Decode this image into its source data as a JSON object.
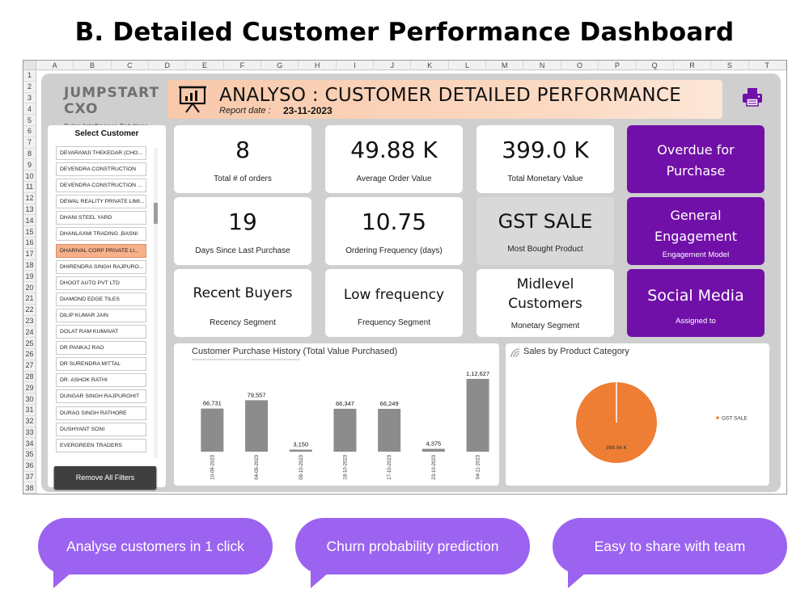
{
  "page_title": "B. Detailed Customer Performance Dashboard",
  "sheet": {
    "columns": [
      "A",
      "B",
      "C",
      "D",
      "E",
      "F",
      "G",
      "H",
      "I",
      "J",
      "K",
      "L",
      "M",
      "N",
      "O",
      "P",
      "Q",
      "R",
      "S",
      "T"
    ],
    "rows": [
      "1",
      "2",
      "3",
      "4",
      "5",
      "6",
      "7",
      "8",
      "9",
      "10",
      "11",
      "12",
      "13",
      "14",
      "15",
      "16",
      "17",
      "18",
      "19",
      "20",
      "21",
      "22",
      "23",
      "24",
      "25",
      "26",
      "27",
      "28",
      "29",
      "30",
      "31",
      "32",
      "33",
      "34",
      "35",
      "36",
      "37",
      "38"
    ]
  },
  "logo": {
    "name": "JUMPSTART CXO",
    "tagline": "Sales Intelligence Solutions."
  },
  "banner": {
    "title": "ANALYSO :  CUSTOMER DETAILED PERFORMANCE",
    "date_label": "Report date :",
    "date": "23-11-2023"
  },
  "slicer": {
    "title": "Select Customer",
    "items": [
      "DEVARAMJI THEKEDAR (CHO...",
      "DEVENDRA CONSTRUCTION",
      "DEVENDRA CONSTRUCTION CO",
      "DEWAL REALITY PRIVATE LIMI...",
      "DHANI STEEL YARD",
      "DHANLAXMI TRADING ,BASNI",
      "DHARIVAL CORP PRIVATE LI...",
      "DHIRENDRA SINGH RAJPURO...",
      "DHOOT AUTO PVT LTD",
      "DIAMOND EDGE TILES",
      "DILIP KUMAR JAIN",
      "DOLAT RAM KUMAVAT",
      "DR PANKAJ RAO",
      "DR SURENDRA MITTAL",
      "DR. ASHOK RATHI",
      "DUNGAR SINGH RAJPUROHIT",
      "DURAG SINGH RATHORE",
      "DUSHYANT SONI",
      "EVERGREEN TRADERS"
    ],
    "selected_index": 6,
    "remove_label": "Remove All Filters"
  },
  "kpis": {
    "orders": {
      "value": "8",
      "label": "Total # of orders"
    },
    "aov": {
      "value": "49.88 K",
      "label": "Average Order Value"
    },
    "monetary": {
      "value": "399.0 K",
      "label": "Total Monetary Value"
    },
    "days_since": {
      "value": "19",
      "label": "Days Since Last Purchase"
    },
    "frequency": {
      "value": "10.75",
      "label": "Ordering Frequency (days)"
    },
    "product": {
      "value": "GST SALE",
      "label": "Most Bought Product"
    },
    "recency_seg": {
      "value": "Recent Buyers",
      "label": "Recency Segment"
    },
    "frequency_seg": {
      "value": "Low frequency",
      "label": "Frequency Segment"
    },
    "monetary_seg": {
      "value_line1": "Midlevel",
      "value_line2": "Customers",
      "label": "Monetary Segment"
    },
    "overdue": {
      "line1": "Overdue for",
      "line2": "Purchase"
    },
    "engagement": {
      "line1": "General",
      "line2": "Engagement",
      "label": "Engagement Model"
    },
    "assigned": {
      "value": "Social Media",
      "label": "Assigned to"
    }
  },
  "chart_data": [
    {
      "type": "bar",
      "title": "Customer Purchase History (Total Value Purchased)",
      "categories": [
        "10-09-2023",
        "04-09-2023",
        "09-10-2023",
        "18-10-2023",
        "17-10-2023",
        "23-10-2023",
        "04-11-2023"
      ],
      "values": [
        66731,
        79557,
        3150,
        66347,
        66249,
        4375,
        112627
      ],
      "data_labels": [
        "66,731",
        "79,557",
        "3,150",
        "66,347",
        "66,249",
        "4,375",
        "1,12,627"
      ],
      "color": "#8c8c8c",
      "ylim": [
        0,
        125000
      ]
    },
    {
      "type": "pie",
      "title": "Sales by Product Category",
      "labels": [
        "GST SALE"
      ],
      "values": [
        399.04
      ],
      "data_labels": [
        "399.04 K"
      ],
      "colors": [
        "#ee7e33"
      ],
      "legend": "right"
    }
  ],
  "bubbles": [
    "Analyse customers in 1 click",
    "Churn probability prediction",
    "Easy to share with team"
  ],
  "colors": {
    "purple_card": "#7110a8",
    "bubble": "#9b63f0",
    "banner": "#fbd9c2",
    "selected_item": "#f7b08a",
    "pie": "#ee7e33"
  }
}
